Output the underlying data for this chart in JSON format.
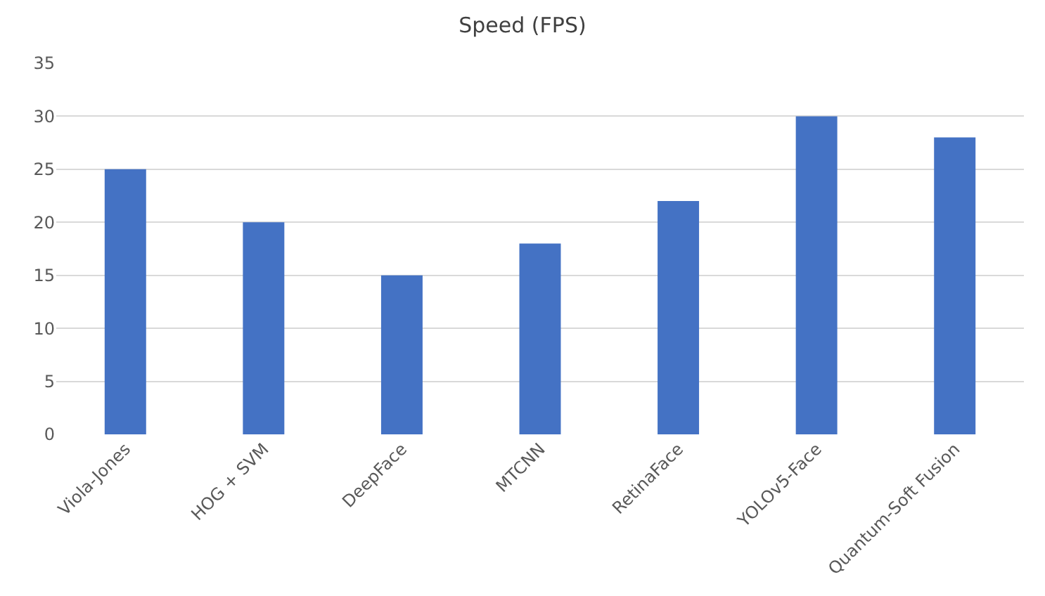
{
  "chart_data": {
    "type": "bar",
    "title": "Speed (FPS)",
    "categories": [
      "Viola-Jones",
      "HOG + SVM",
      "DeepFace",
      "MTCNN",
      "RetinaFace",
      "YOLOv5-Face",
      "Quantum-Soft Fusion"
    ],
    "values": [
      25,
      20,
      15,
      18,
      22,
      30,
      28
    ],
    "color": "#4472c4",
    "ylim": [
      0,
      35
    ],
    "yticks": [
      0,
      5,
      10,
      15,
      20,
      25,
      30,
      35
    ],
    "grid": "y"
  }
}
